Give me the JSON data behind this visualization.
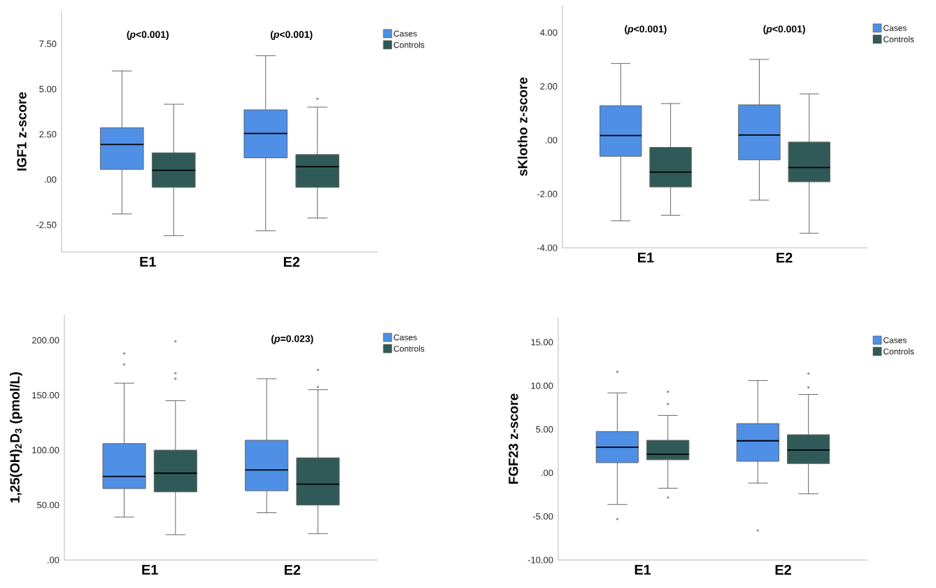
{
  "chart_data": [
    {
      "type": "box",
      "categories": [
        "E1",
        "E2"
      ],
      "ylabel": "IGF1 z-score",
      "ylim": [
        -4,
        9.3
      ],
      "yticks": [
        {
          "value": -2.5,
          "label": "-2.50"
        },
        {
          "value": 0,
          "label": ".00"
        },
        {
          "value": 2.5,
          "label": "2.50"
        },
        {
          "value": 5,
          "label": "5.00"
        },
        {
          "value": 7.5,
          "label": "7.50"
        }
      ],
      "legend": "top right",
      "series": [
        {
          "name": "Cases",
          "color": "#4f8fe6",
          "boxes": [
            {
              "low": -1.9,
              "q1": 0.56,
              "median": 1.94,
              "q3": 2.86,
              "high": 6.0
            },
            {
              "low": -2.83,
              "q1": 1.2,
              "median": 2.55,
              "q3": 3.85,
              "high": 6.84
            }
          ]
        },
        {
          "name": "Controls",
          "color": "#305a57",
          "boxes": [
            {
              "low": -3.1,
              "q1": -0.43,
              "median": 0.51,
              "q3": 1.48,
              "high": 4.16
            },
            {
              "low": -2.12,
              "q1": -0.43,
              "median": 0.71,
              "q3": 1.38,
              "high": 4.0,
              "outliers": [
                4.46
              ]
            }
          ]
        }
      ],
      "annotations": [
        "(*p*<0.001)",
        "(*p*<0.001)"
      ]
    },
    {
      "type": "box",
      "categories": [
        "E1",
        "E2"
      ],
      "ylabel": "sKlotho z-score",
      "ylim": [
        -4,
        5
      ],
      "yticks": [
        {
          "value": -4,
          "label": "-4.00"
        },
        {
          "value": -2,
          "label": "-2.00"
        },
        {
          "value": 0,
          "label": ".00"
        },
        {
          "value": 2,
          "label": "2.00"
        },
        {
          "value": 4,
          "label": "4.00"
        }
      ],
      "legend": "top right",
      "series": [
        {
          "name": "Cases",
          "color": "#4f8fe6",
          "boxes": [
            {
              "low": -3.0,
              "q1": -0.6,
              "median": 0.17,
              "q3": 1.28,
              "high": 2.85
            },
            {
              "low": -2.23,
              "q1": -0.73,
              "median": 0.19,
              "q3": 1.31,
              "high": 3.0
            }
          ]
        },
        {
          "name": "Controls",
          "color": "#305a57",
          "boxes": [
            {
              "low": -2.79,
              "q1": -1.74,
              "median": -1.19,
              "q3": -0.27,
              "high": 1.36
            },
            {
              "low": -3.46,
              "q1": -1.55,
              "median": -1.02,
              "q3": -0.07,
              "high": 1.72
            }
          ]
        }
      ],
      "annotations": [
        "(*p*<0.001)",
        "(*p*<0.001)"
      ]
    },
    {
      "type": "box",
      "categories": [
        "E1",
        "E2"
      ],
      "ylabel": "1,25(OH)$_{2}$D$_{3}$ (pmol/L)",
      "ylim": [
        0,
        223
      ],
      "yticks": [
        {
          "value": 0,
          "label": ".00"
        },
        {
          "value": 50,
          "label": "50.00"
        },
        {
          "value": 100,
          "label": "100.00"
        },
        {
          "value": 150,
          "label": "150.00"
        },
        {
          "value": 200,
          "label": "200.00"
        }
      ],
      "legend": "top right",
      "series": [
        {
          "name": "Cases",
          "color": "#4f8fe6",
          "boxes": [
            {
              "low": 39,
              "q1": 65,
              "median": 76,
              "q3": 106,
              "high": 161,
              "outliers": [
                188,
                178
              ]
            },
            {
              "low": 43,
              "q1": 63,
              "median": 82,
              "q3": 109,
              "high": 165
            }
          ]
        },
        {
          "name": "Controls",
          "color": "#305a57",
          "boxes": [
            {
              "low": 23,
              "q1": 62,
              "median": 79,
              "q3": 100,
              "high": 145,
              "outliers": [
                199,
                170,
                165
              ]
            },
            {
              "low": 24,
              "q1": 50,
              "median": 69,
              "q3": 93,
              "high": 155,
              "outliers": [
                173,
                157.5
              ]
            }
          ]
        }
      ],
      "annotations": [
        "(*p*=0.023)"
      ]
    },
    {
      "type": "box",
      "categories": [
        "E1",
        "E2"
      ],
      "ylabel": "FGF23 z-score",
      "ylim": [
        -10,
        17.8
      ],
      "yticks": [
        {
          "value": -10,
          "label": "-10.00"
        },
        {
          "value": -5,
          "label": "-5.00"
        },
        {
          "value": 0,
          "label": ".00"
        },
        {
          "value": 5,
          "label": "5.00"
        },
        {
          "value": 10,
          "label": "10.00"
        },
        {
          "value": 15,
          "label": "15.00"
        }
      ],
      "legend": "top right",
      "series": [
        {
          "name": "Cases",
          "color": "#4f8fe6",
          "boxes": [
            {
              "low": -3.63,
              "q1": 1.17,
              "median": 2.94,
              "q3": 4.75,
              "high": 9.18,
              "outliers": [
                11.6,
                -5.3
              ]
            },
            {
              "low": -1.17,
              "q1": 1.33,
              "median": 3.68,
              "q3": 5.66,
              "high": 10.6,
              "outliers": [
                -6.6
              ]
            }
          ]
        },
        {
          "name": "Controls",
          "color": "#305a57",
          "boxes": [
            {
              "low": -1.76,
              "q1": 1.5,
              "median": 2.14,
              "q3": 3.74,
              "high": 6.6,
              "outliers": [
                9.3,
                7.9,
                -2.83
              ]
            },
            {
              "low": -2.4,
              "q1": 1.07,
              "median": 2.62,
              "q3": 4.38,
              "high": 9.0,
              "outliers": [
                11.4,
                9.8
              ]
            }
          ]
        }
      ]
    }
  ]
}
